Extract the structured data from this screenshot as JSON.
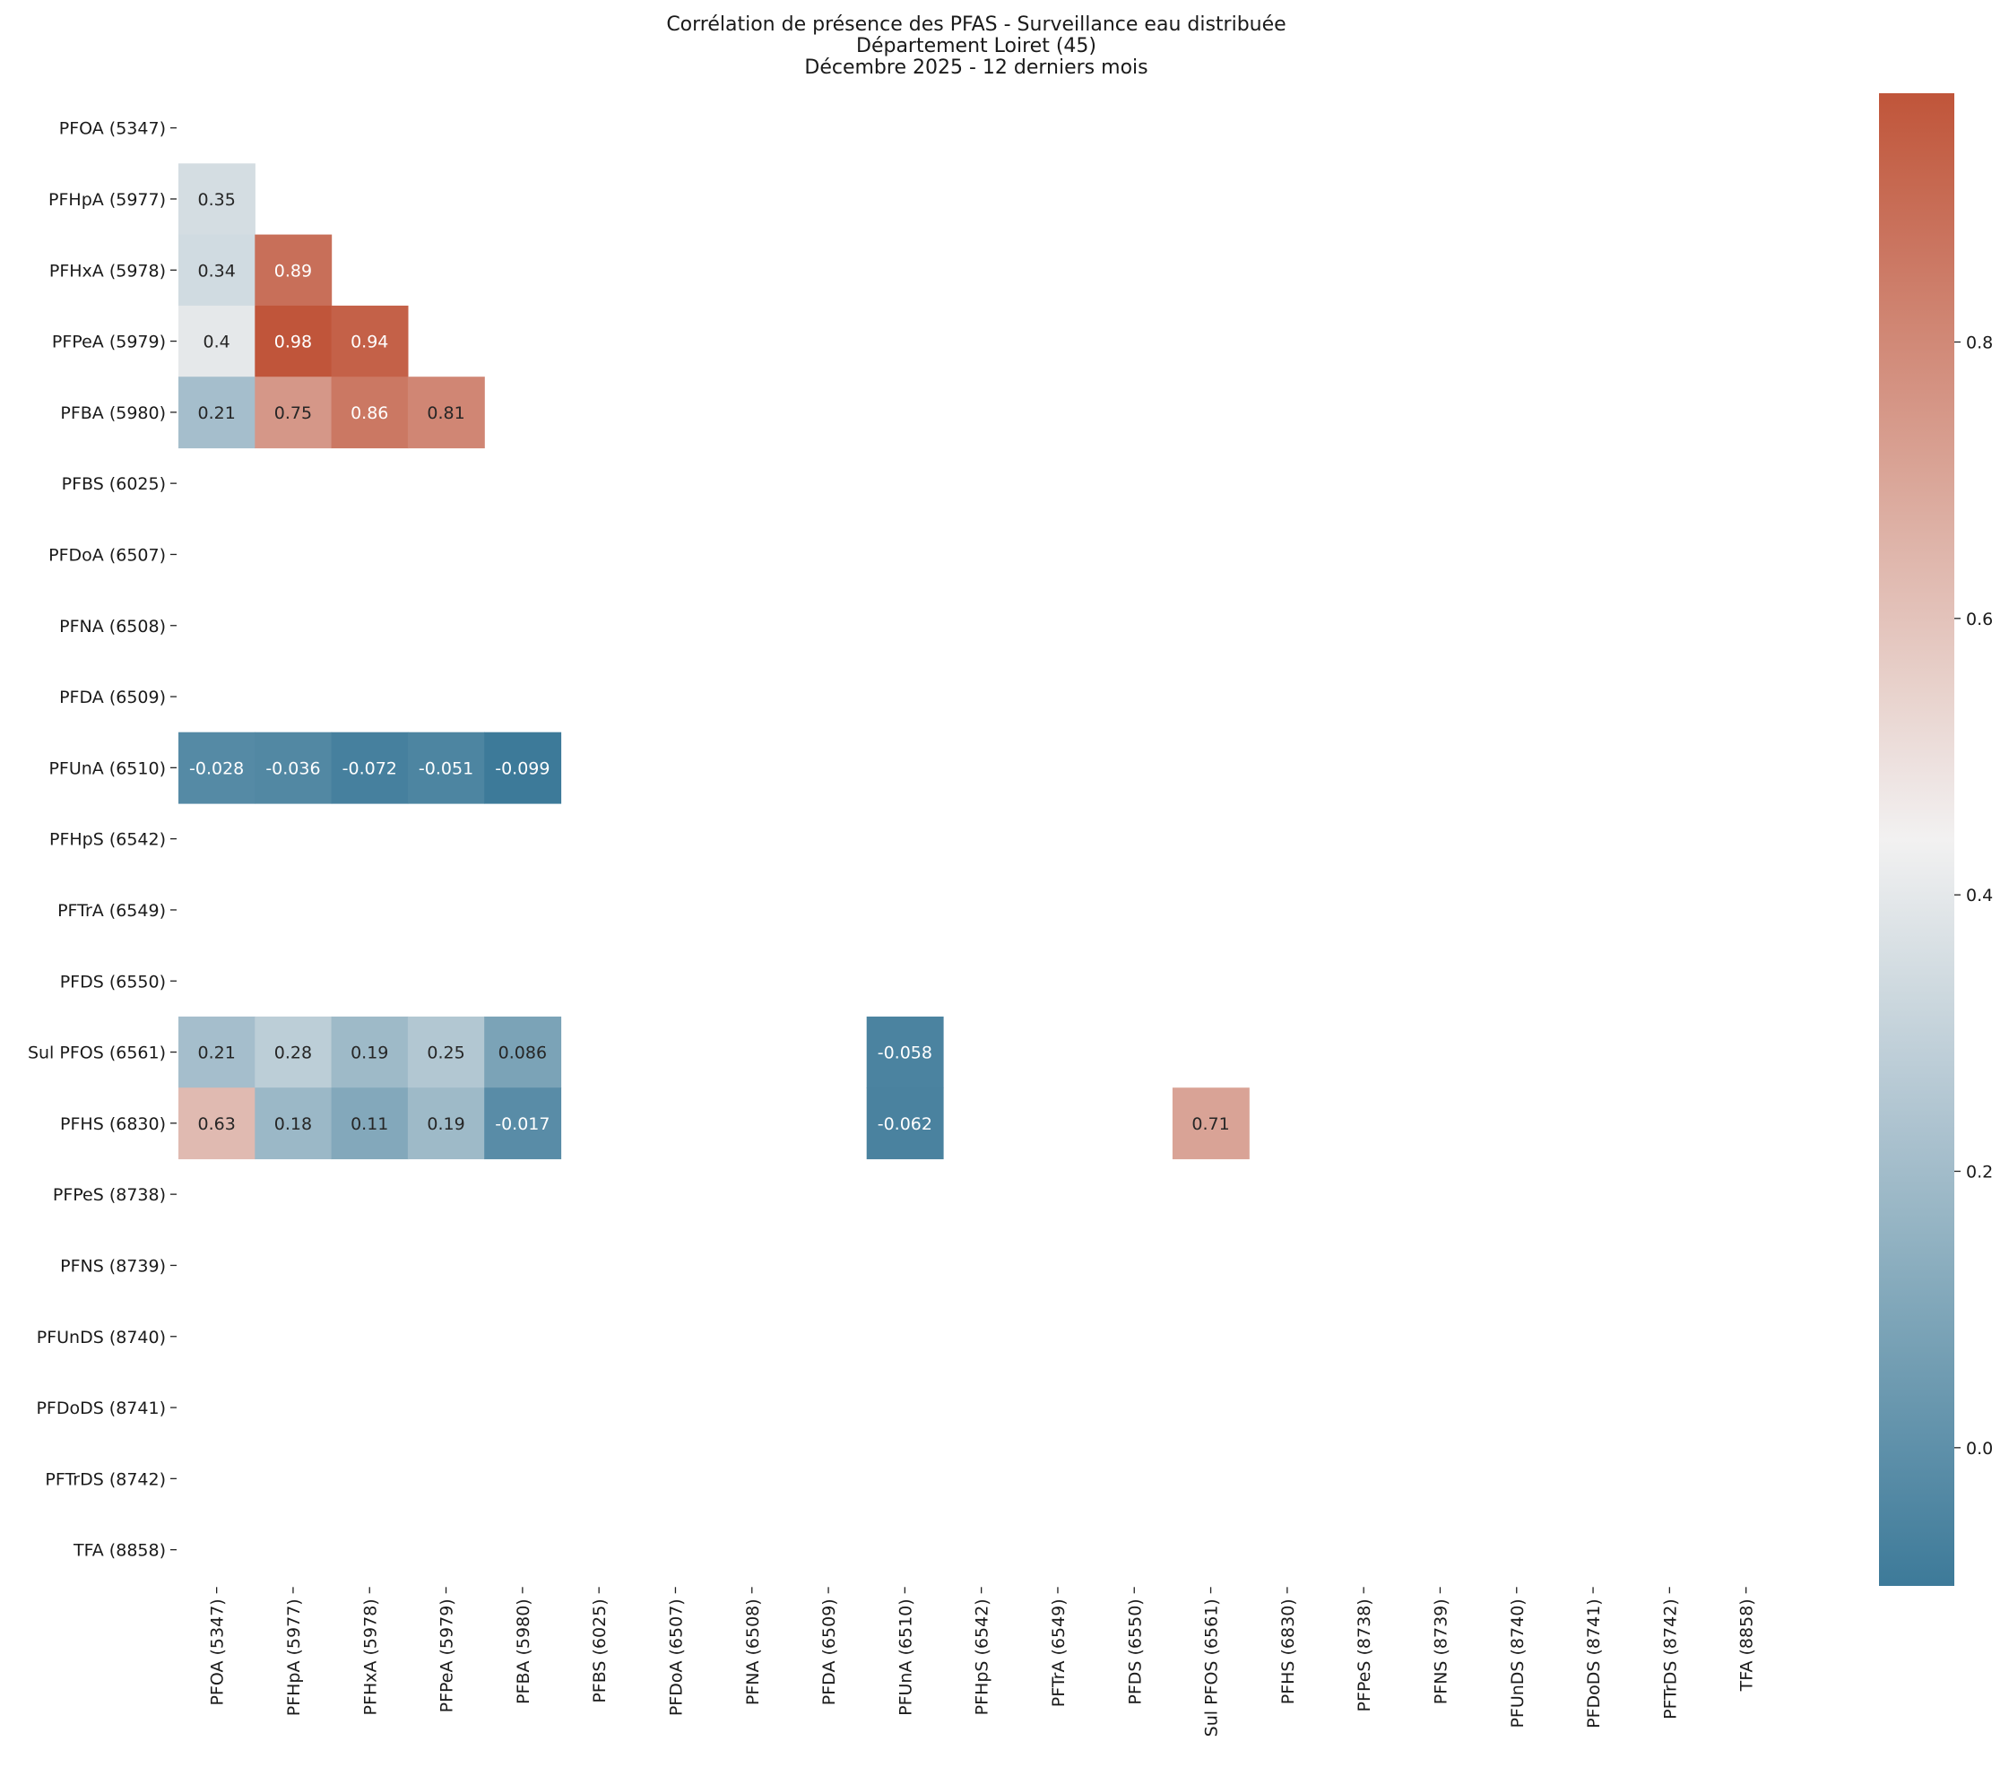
{
  "chart_data": {
    "type": "heatmap",
    "title": [
      "Corrélation de présence des PFAS - Surveillance eau distribuée",
      "Département Loiret (45)",
      "Décembre 2025 - 12 derniers mois"
    ],
    "labels": [
      "PFOA (5347)",
      "PFHpA (5977)",
      "PFHxA (5978)",
      "PFPeA (5979)",
      "PFBA (5980)",
      "PFBS (6025)",
      "PFDoA (6507)",
      "PFNA (6508)",
      "PFDA (6509)",
      "PFUnA (6510)",
      "PFHpS (6542)",
      "PFTrA (6549)",
      "PFDS (6550)",
      "Sul PFOS (6561)",
      "PFHS (6830)",
      "PFPeS (8738)",
      "PFNS (8739)",
      "PFUnDS (8740)",
      "PFDoDS (8741)",
      "PFTrDS (8742)",
      "TFA (8858)"
    ],
    "cells": [
      {
        "row": 1,
        "col": 0,
        "value": 0.35,
        "label": "0.35"
      },
      {
        "row": 2,
        "col": 0,
        "value": 0.34,
        "label": "0.34"
      },
      {
        "row": 2,
        "col": 1,
        "value": 0.89,
        "label": "0.89"
      },
      {
        "row": 3,
        "col": 0,
        "value": 0.4,
        "label": "0.4"
      },
      {
        "row": 3,
        "col": 1,
        "value": 0.98,
        "label": "0.98"
      },
      {
        "row": 3,
        "col": 2,
        "value": 0.94,
        "label": "0.94"
      },
      {
        "row": 4,
        "col": 0,
        "value": 0.21,
        "label": "0.21"
      },
      {
        "row": 4,
        "col": 1,
        "value": 0.75,
        "label": "0.75"
      },
      {
        "row": 4,
        "col": 2,
        "value": 0.86,
        "label": "0.86"
      },
      {
        "row": 4,
        "col": 3,
        "value": 0.81,
        "label": "0.81"
      },
      {
        "row": 9,
        "col": 0,
        "value": -0.028,
        "label": "-0.028"
      },
      {
        "row": 9,
        "col": 1,
        "value": -0.036,
        "label": "-0.036"
      },
      {
        "row": 9,
        "col": 2,
        "value": -0.072,
        "label": "-0.072"
      },
      {
        "row": 9,
        "col": 3,
        "value": -0.051,
        "label": "-0.051"
      },
      {
        "row": 9,
        "col": 4,
        "value": -0.099,
        "label": "-0.099"
      },
      {
        "row": 13,
        "col": 0,
        "value": 0.21,
        "label": "0.21"
      },
      {
        "row": 13,
        "col": 1,
        "value": 0.28,
        "label": "0.28"
      },
      {
        "row": 13,
        "col": 2,
        "value": 0.19,
        "label": "0.19"
      },
      {
        "row": 13,
        "col": 3,
        "value": 0.25,
        "label": "0.25"
      },
      {
        "row": 13,
        "col": 4,
        "value": 0.086,
        "label": "0.086"
      },
      {
        "row": 13,
        "col": 9,
        "value": -0.058,
        "label": "-0.058"
      },
      {
        "row": 14,
        "col": 0,
        "value": 0.63,
        "label": "0.63"
      },
      {
        "row": 14,
        "col": 1,
        "value": 0.18,
        "label": "0.18"
      },
      {
        "row": 14,
        "col": 2,
        "value": 0.11,
        "label": "0.11"
      },
      {
        "row": 14,
        "col": 3,
        "value": 0.19,
        "label": "0.19"
      },
      {
        "row": 14,
        "col": 4,
        "value": -0.017,
        "label": "-0.017"
      },
      {
        "row": 14,
        "col": 9,
        "value": -0.062,
        "label": "-0.062"
      },
      {
        "row": 14,
        "col": 13,
        "value": 0.71,
        "label": "0.71"
      }
    ],
    "colorbar": {
      "vmin": -0.1,
      "vmax": 0.98,
      "ticks": [
        0.0,
        0.2,
        0.4,
        0.6,
        0.8
      ],
      "tick_labels": [
        "0.0",
        "0.2",
        "0.4",
        "0.6",
        "0.8"
      ],
      "low_color": "#3d7a99",
      "mid_color": "#f2f1f1",
      "high_color": "#c0553a"
    },
    "grid": false,
    "mask": "upper-triangle-and-missing"
  }
}
